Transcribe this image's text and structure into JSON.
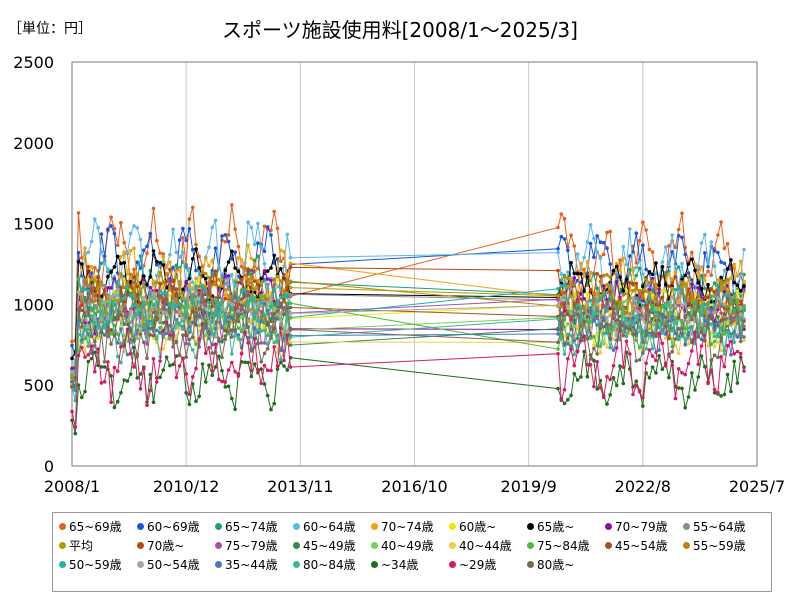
{
  "unit_label": "［単位：円］",
  "chart_data": {
    "type": "line",
    "title": "スポーツ施設使用料[2008/1～2025/3]",
    "y_ticks": [
      "0",
      "500",
      "1000",
      "1500",
      "2000",
      "2500"
    ],
    "x_ticks": [
      "2008/1",
      "2010/12",
      "2013/11",
      "2016/10",
      "2019/9",
      "2022/8",
      "2025/7"
    ],
    "ylim": [
      0,
      2500
    ],
    "xlim": [
      "2008/1",
      "2025/7"
    ],
    "grid": "vertical",
    "legend_position": "bottom",
    "series": [
      {
        "name": "65~69歳",
        "color": "#e8601c",
        "base": 1300,
        "amp": 260,
        "noise": 150,
        "seed": 1
      },
      {
        "name": "60~69歳",
        "color": "#1a56db",
        "base": 1250,
        "amp": 220,
        "noise": 120,
        "seed": 2
      },
      {
        "name": "65~74歳",
        "color": "#1aa07a",
        "base": 1100,
        "amp": 150,
        "noise": 110,
        "seed": 3
      },
      {
        "name": "60~64歳",
        "color": "#5bb8e8",
        "base": 1250,
        "amp": 220,
        "noise": 140,
        "seed": 4
      },
      {
        "name": "70~74歳",
        "color": "#f0a30a",
        "base": 1150,
        "amp": 160,
        "noise": 110,
        "seed": 5
      },
      {
        "name": "60歳~",
        "color": "#f2e600",
        "base": 1000,
        "amp": 110,
        "noise": 90,
        "seed": 6
      },
      {
        "name": "65歳~",
        "color": "#000000",
        "base": 1150,
        "amp": 150,
        "noise": 80,
        "seed": 7
      },
      {
        "name": "70~79歳",
        "color": "#8e0fa8",
        "base": 1000,
        "amp": 150,
        "noise": 110,
        "seed": 8
      },
      {
        "name": "55~64歳",
        "color": "#8c8c8c",
        "base": 1000,
        "amp": 110,
        "noise": 90,
        "seed": 9
      },
      {
        "name": "平均",
        "color": "#b39a00",
        "base": 1050,
        "amp": 100,
        "noise": 60,
        "seed": 10
      },
      {
        "name": "70歳~",
        "color": "#c1440e",
        "base": 1050,
        "amp": 140,
        "noise": 100,
        "seed": 11
      },
      {
        "name": "75~79歳",
        "color": "#a94fa8",
        "base": 950,
        "amp": 150,
        "noise": 120,
        "seed": 12
      },
      {
        "name": "45~49歳",
        "color": "#2e8b57",
        "base": 900,
        "amp": 100,
        "noise": 90,
        "seed": 13
      },
      {
        "name": "40~49歳",
        "color": "#7ccd5a",
        "base": 900,
        "amp": 100,
        "noise": 90,
        "seed": 14
      },
      {
        "name": "40~44歳",
        "color": "#f0d040",
        "base": 850,
        "amp": 110,
        "noise": 90,
        "seed": 15
      },
      {
        "name": "75~84歳",
        "color": "#4cbb3c",
        "base": 900,
        "amp": 120,
        "noise": 100,
        "seed": 16
      },
      {
        "name": "45~54歳",
        "color": "#a0522d",
        "base": 950,
        "amp": 100,
        "noise": 90,
        "seed": 17
      },
      {
        "name": "55~59歳",
        "color": "#b8860b",
        "base": 1050,
        "amp": 130,
        "noise": 100,
        "seed": 18
      },
      {
        "name": "50~59歳",
        "color": "#20b2aa",
        "base": 1000,
        "amp": 110,
        "noise": 90,
        "seed": 19
      },
      {
        "name": "50~54歳",
        "color": "#a8a89a",
        "base": 950,
        "amp": 100,
        "noise": 90,
        "seed": 20
      },
      {
        "name": "35~44歳",
        "color": "#4a76c0",
        "base": 850,
        "amp": 100,
        "noise": 90,
        "seed": 21
      },
      {
        "name": "80~84歳",
        "color": "#3cb88f",
        "base": 850,
        "amp": 130,
        "noise": 110,
        "seed": 22
      },
      {
        "name": "~34歳",
        "color": "#1e6e1e",
        "base": 550,
        "amp": 130,
        "noise": 110,
        "seed": 23
      },
      {
        "name": "~29歳",
        "color": "#d81b60",
        "base": 650,
        "amp": 160,
        "noise": 150,
        "seed": 24
      },
      {
        "name": "80歳~",
        "color": "#7a6a55",
        "base": 850,
        "amp": 150,
        "noise": 110,
        "seed": 25
      }
    ]
  }
}
